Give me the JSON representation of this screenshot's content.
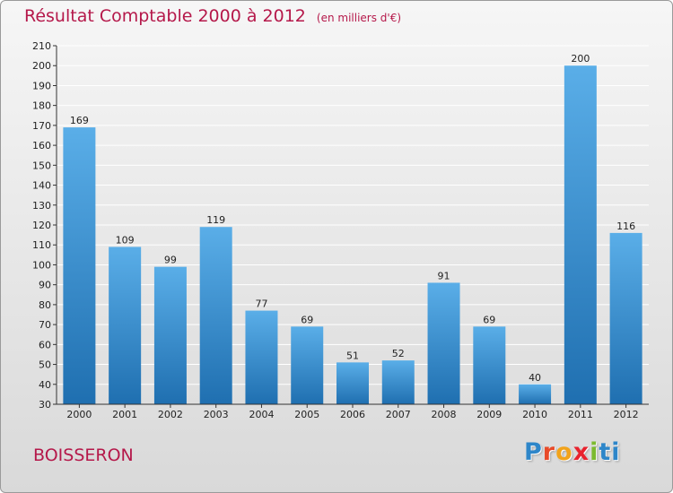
{
  "title": "Résultat Comptable 2000 à 2012",
  "title_unit": "(en milliers d'€)",
  "commune": "BOISSERON",
  "logo_letters": [
    "P",
    "r",
    "o",
    "x",
    "i",
    "t",
    "i"
  ],
  "colors": {
    "bar_top": "#5aaee8",
    "bar_bottom": "#1f6fb0",
    "title": "#b5184a",
    "grid": "#ffffff"
  },
  "chart_data": {
    "type": "bar",
    "title": "Résultat Comptable 2000 à 2012",
    "xlabel": "",
    "ylabel": "",
    "categories": [
      "2000",
      "2001",
      "2002",
      "2003",
      "2004",
      "2005",
      "2006",
      "2007",
      "2008",
      "2009",
      "2010",
      "2011",
      "2012"
    ],
    "values": [
      169,
      109,
      99,
      119,
      77,
      69,
      51,
      52,
      91,
      69,
      40,
      200,
      116
    ],
    "ylim": [
      30,
      210
    ],
    "ytick_step": 10,
    "grid": true,
    "legend": "none"
  }
}
